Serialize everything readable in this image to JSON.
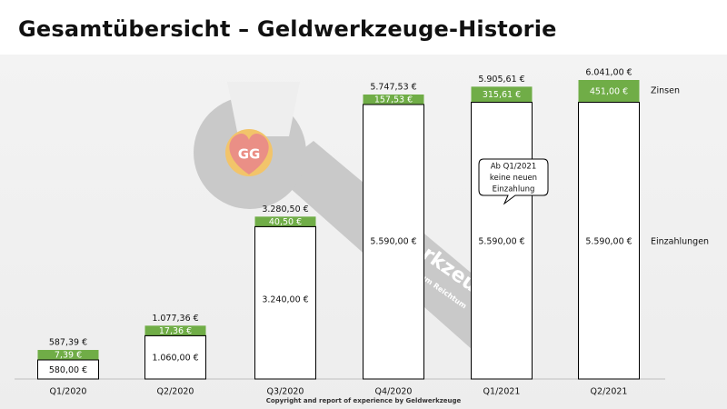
{
  "title": "Gesamtübersicht – Geldwerkzeuge-Historie",
  "footer": "Copyright and report of experience by Geldwerkzeuge",
  "watermark": {
    "logo_letters": "GG",
    "text_main": "werkzeuge",
    "text_sub": "zum Reichtum"
  },
  "colors": {
    "zinsen": "#70ad47",
    "einzahlungen": "#ffffff",
    "bar_outline": "#000000",
    "background": "#efefef"
  },
  "chart_data": {
    "type": "bar",
    "stacked": true,
    "categories": [
      "Q1/2020",
      "Q2/2020",
      "Q3/2020",
      "Q4/2020",
      "Q1/2021",
      "Q2/2021"
    ],
    "series": [
      {
        "name": "Einzahlungen",
        "values": [
          580.0,
          1060.0,
          3240.0,
          5590.0,
          5590.0,
          5590.0
        ],
        "labels": [
          "580,00 €",
          "1.060,00 €",
          "3.240,00 €",
          "5.590,00 €",
          "5.590,00 €",
          "5.590,00 €"
        ]
      },
      {
        "name": "Zinsen",
        "values": [
          7.39,
          17.36,
          40.5,
          157.53,
          315.61,
          451.0
        ],
        "labels": [
          "7,39 €",
          "17,36 €",
          "40,50 €",
          "157,53 €",
          "315,61 €",
          "451,00 €"
        ]
      }
    ],
    "totals": [
      587.39,
      1077.36,
      3280.5,
      5747.53,
      5905.61,
      6041.0
    ],
    "total_labels": [
      "587,39 €",
      "1.077,36 €",
      "3.280,50 €",
      "5.747,53 €",
      "5.905,61 €",
      "6.041,00 €"
    ],
    "legend": [
      "Zinsen",
      "Einzahlungen"
    ],
    "legend_placement": "right",
    "annotation": {
      "category": "Q1/2021",
      "lines": [
        "Ab Q1/2021",
        "keine neuen",
        "Einzahlung"
      ]
    },
    "ylim": [
      0,
      6041
    ],
    "grid": false,
    "xlabel": "",
    "ylabel": ""
  }
}
